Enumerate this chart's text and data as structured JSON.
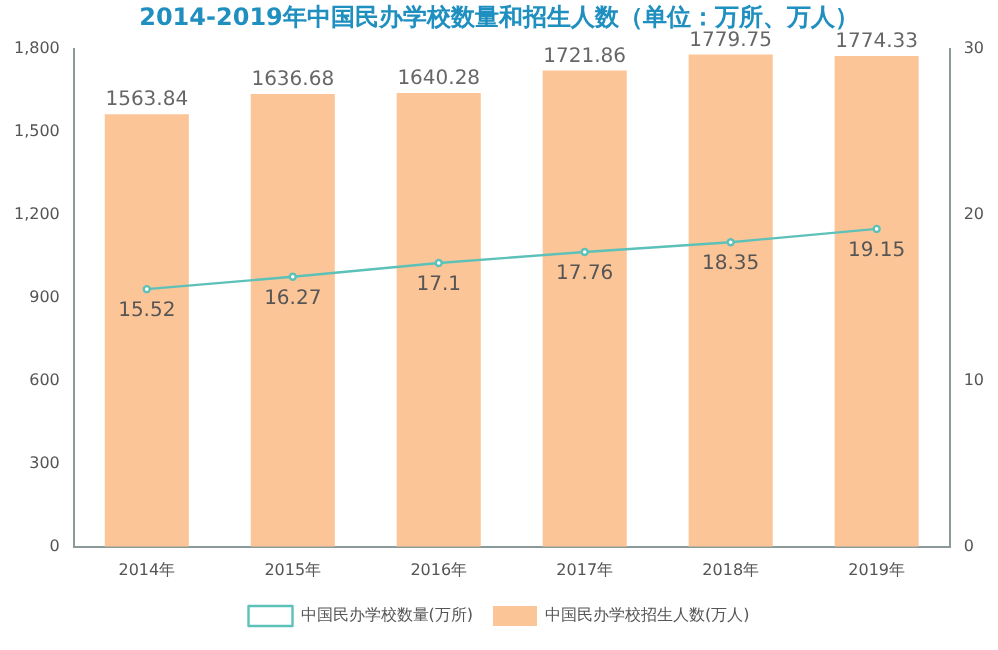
{
  "chart_data": {
    "type": "bar",
    "title": "2014-2019年中国民办学校数量和招生人数（单位：万所、万人）",
    "categories": [
      "2014年",
      "2015年",
      "2016年",
      "2017年",
      "2018年",
      "2019年"
    ],
    "series": [
      {
        "name": "中国民办学校数量(万所)",
        "type": "line",
        "axis": "y2",
        "color": "#5cc1b8",
        "values": [
          15.52,
          16.27,
          17.1,
          17.76,
          18.35,
          19.15
        ]
      },
      {
        "name": "中国民办学校招生人数(万人)",
        "type": "bar",
        "color": "#fcc597",
        "values": [
          1563.84,
          1636.68,
          1640.28,
          1721.86,
          1779.75,
          1774.33
        ]
      }
    ],
    "ylim": [
      0,
      1800
    ],
    "yticks": [
      0,
      300,
      600,
      900,
      {
        "value": 1200,
        "label": "1,200"
      },
      {
        "value": 1500,
        "label": "1,500"
      },
      {
        "value": 1800,
        "label": "1,800"
      }
    ],
    "y2lim": [
      0,
      30
    ],
    "y2ticks": [
      0,
      10,
      20,
      30
    ],
    "data_labels": true,
    "grid": false,
    "legend": "bottom",
    "marker": "circle",
    "line_style": "solid"
  }
}
